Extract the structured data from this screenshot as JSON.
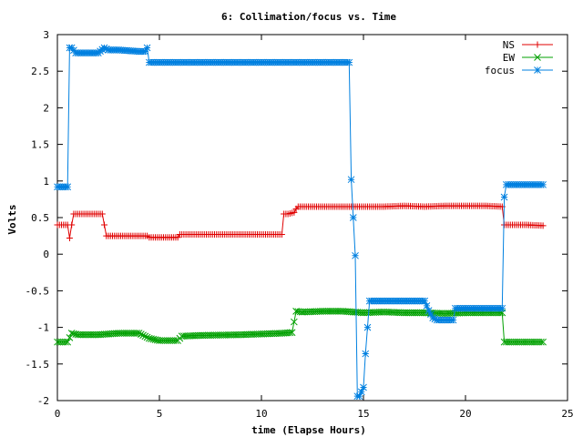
{
  "chart_data": {
    "type": "line",
    "title": "6: Collimation/focus vs. Time",
    "xlabel": "time (Elapse Hours)",
    "ylabel": "Volts",
    "xlim": [
      0,
      25
    ],
    "ylim": [
      -2,
      3
    ],
    "x_ticks": [
      "0",
      "5",
      "10",
      "15",
      "20",
      "25"
    ],
    "y_ticks": [
      "3",
      "2.5",
      "2",
      "1.5",
      "1",
      "0.5",
      "0",
      "-0.5",
      "-1",
      "-1.5",
      "-2"
    ],
    "grid": false,
    "legend_position": "top-right",
    "series": [
      {
        "name": "NS",
        "color": "#e00000",
        "marker": "plus",
        "x": [
          0.0,
          0.5,
          0.6,
          0.7,
          0.8,
          1.5,
          2.2,
          2.4,
          3.0,
          4.0,
          4.4,
          4.5,
          5.0,
          5.5,
          5.9,
          6.0,
          7.0,
          9.0,
          11.0,
          11.1,
          11.3,
          11.6,
          11.7,
          11.8,
          12.0,
          13.0,
          14.0,
          15.0,
          16.0,
          17.0,
          18.0,
          19.0,
          20.0,
          21.0,
          21.8,
          21.9,
          22.0,
          23.0,
          23.8
        ],
        "y": [
          0.4,
          0.4,
          0.22,
          0.4,
          0.55,
          0.55,
          0.55,
          0.25,
          0.25,
          0.25,
          0.25,
          0.23,
          0.23,
          0.23,
          0.23,
          0.27,
          0.27,
          0.27,
          0.27,
          0.55,
          0.55,
          0.57,
          0.62,
          0.65,
          0.65,
          0.65,
          0.65,
          0.65,
          0.65,
          0.66,
          0.65,
          0.66,
          0.66,
          0.66,
          0.65,
          0.4,
          0.4,
          0.4,
          0.39
        ]
      },
      {
        "name": "EW",
        "color": "#00a000",
        "marker": "cross",
        "x": [
          0.0,
          0.5,
          0.7,
          1.0,
          2.0,
          3.0,
          4.0,
          4.5,
          5.0,
          5.5,
          5.9,
          6.1,
          7.0,
          9.0,
          11.0,
          11.5,
          11.7,
          12.0,
          13.0,
          14.0,
          14.5,
          15.0,
          16.0,
          17.0,
          18.0,
          19.0,
          20.0,
          21.0,
          21.8,
          21.9,
          22.5,
          23.0,
          23.8
        ],
        "y": [
          -1.2,
          -1.2,
          -1.08,
          -1.1,
          -1.1,
          -1.08,
          -1.08,
          -1.15,
          -1.18,
          -1.18,
          -1.18,
          -1.12,
          -1.11,
          -1.1,
          -1.08,
          -1.07,
          -0.78,
          -0.79,
          -0.78,
          -0.78,
          -0.79,
          -0.8,
          -0.79,
          -0.8,
          -0.8,
          -0.81,
          -0.8,
          -0.8,
          -0.8,
          -1.2,
          -1.2,
          -1.2,
          -1.2
        ]
      },
      {
        "name": "focus",
        "color": "#0080e0",
        "marker": "star",
        "x": [
          0.0,
          0.5,
          0.6,
          0.7,
          0.9,
          1.0,
          2.0,
          2.3,
          2.5,
          3.0,
          4.0,
          4.3,
          4.4,
          4.5,
          5.0,
          8.0,
          11.0,
          13.5,
          14.3,
          14.4,
          14.6,
          14.7,
          14.8,
          15.0,
          15.1,
          15.3,
          16.0,
          17.0,
          18.0,
          18.2,
          18.4,
          18.6,
          19.0,
          19.4,
          19.5,
          20.0,
          21.0,
          21.8,
          21.9,
          22.0,
          22.5,
          23.0,
          23.8
        ],
        "y": [
          0.92,
          0.92,
          2.82,
          2.82,
          2.75,
          2.75,
          2.75,
          2.82,
          2.79,
          2.79,
          2.77,
          2.77,
          2.82,
          2.62,
          2.62,
          2.62,
          2.62,
          2.62,
          2.62,
          1.02,
          -0.02,
          -1.94,
          -1.94,
          -1.82,
          -1.36,
          -0.64,
          -0.64,
          -0.64,
          -0.64,
          -0.77,
          -0.87,
          -0.9,
          -0.9,
          -0.9,
          -0.74,
          -0.74,
          -0.74,
          -0.74,
          0.78,
          0.95,
          0.95,
          0.95,
          0.95
        ]
      }
    ]
  }
}
